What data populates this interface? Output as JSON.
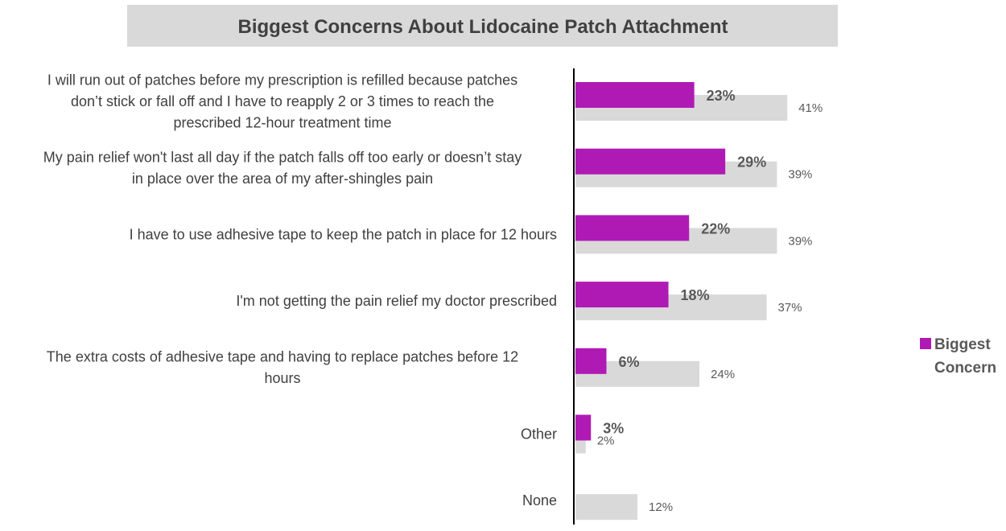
{
  "colors": {
    "primary": "#b01ab4",
    "secondary": "#d9d9d9",
    "title_bg": "#d9d9d9",
    "text": "#404040"
  },
  "chart_data": {
    "type": "bar",
    "orientation": "horizontal",
    "title": "Biggest Concerns About Lidocaine Patch Attachment",
    "categories": [
      [
        "I will run out of patches before my prescription is refilled because patches",
        "don’t stick or fall off and I have to reapply 2 or 3 times to reach the",
        "prescribed 12-hour treatment time"
      ],
      [
        "My pain relief won't last all day if the patch falls off too early or doesn’t stay",
        "in place over the area of my after-shingles pain"
      ],
      [
        "I have to use adhesive tape to keep the patch in place for 12 hours"
      ],
      [
        "I'm not getting the pain relief my doctor prescribed"
      ],
      [
        "The extra costs of adhesive tape and having to replace patches before 12",
        "hours"
      ],
      [
        "Other"
      ],
      [
        "None"
      ]
    ],
    "series": [
      {
        "name": "Biggest Concern",
        "values": [
          23,
          29,
          22,
          18,
          6,
          3,
          null
        ],
        "labels": [
          "23%",
          "29%",
          "22%",
          "18%",
          "6%",
          "3%",
          ""
        ]
      },
      {
        "name": "",
        "values": [
          41,
          39,
          39,
          37,
          24,
          2,
          12
        ],
        "labels": [
          "41%",
          "39%",
          "39%",
          "37%",
          "24%",
          "2%",
          "12%"
        ]
      }
    ],
    "legend": {
      "entries": [
        "Biggest Concern"
      ],
      "placement": "right"
    },
    "xlim": [
      0,
      100
    ],
    "grid": false,
    "x_axis_visible": false
  }
}
